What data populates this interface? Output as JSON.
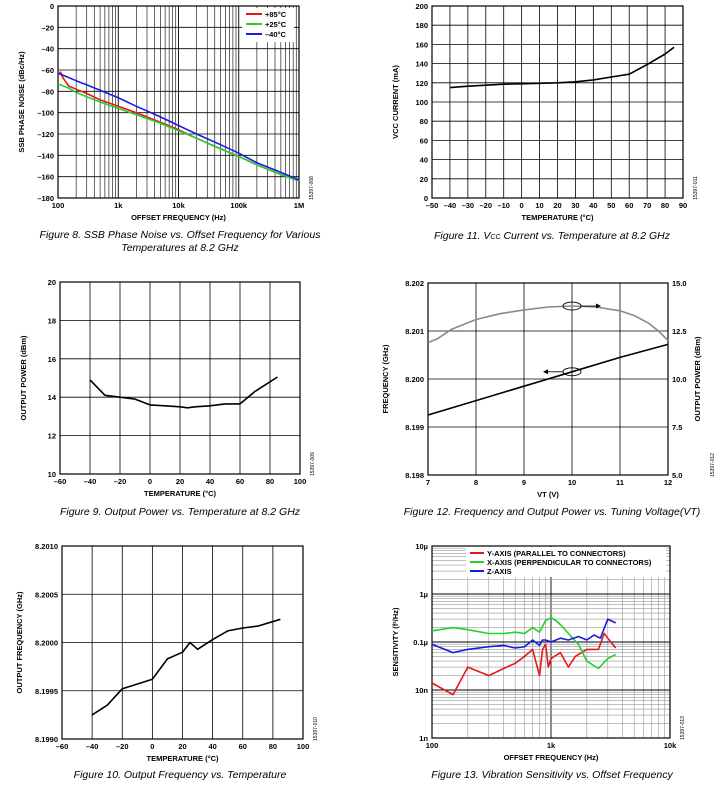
{
  "colors": {
    "red": "#e8171b",
    "green": "#22d12e",
    "blue": "#1c1ce0",
    "gray": "#8a8a8a",
    "black": "#000000"
  },
  "captions": {
    "fig8": "Figure 8. SSB Phase Noise vs. Offset Frequency for Various Temperatures at 8.2 GHz",
    "fig11": "Figure 11. VCC Current vs. Temperature at 8.2 GHz",
    "fig9": "Figure 9. Output Power vs. Temperature at 8.2 GHz",
    "fig12": "Figure 12. Frequency and Output Power vs. Tuning Voltage(VT)",
    "fig10": "Figure 10. Output Frequency vs. Temperature",
    "fig13": "Figure 13. Vibration Sensitivity vs. Offset Frequency"
  },
  "chart_data": [
    {
      "id": "fig8",
      "type": "line",
      "fig_id": "15397-008",
      "xlabel": "OFFSET FREQUENCY (Hz)",
      "ylabel": "SSB PHASE NOISE (dBc/Hz)",
      "xscale": "log",
      "xlim": [
        100,
        1000000
      ],
      "ylim": [
        -180,
        0
      ],
      "xticks": [
        100,
        1000,
        10000,
        100000,
        1000000
      ],
      "xtick_labels": [
        "100",
        "1k",
        "10k",
        "100k",
        "1M"
      ],
      "yticks": [
        0,
        -20,
        -40,
        -60,
        -80,
        -100,
        -120,
        -140,
        -160,
        -180
      ],
      "ytick_labels": [
        "0",
        "–20",
        "–40",
        "–60",
        "–80",
        "–100",
        "–120",
        "–140",
        "–160",
        "–180"
      ],
      "legend_position": "top-right",
      "grid": true,
      "series": [
        {
          "name": "+85°C",
          "color": "red",
          "x": [
            100,
            110,
            120,
            130,
            150,
            200,
            300,
            500,
            1000,
            2000,
            5000,
            10000,
            20000,
            50000,
            100000,
            200000,
            500000,
            1000000
          ],
          "y": [
            -65,
            -62,
            -67,
            -70,
            -75,
            -78,
            -82,
            -88,
            -94,
            -100,
            -109,
            -116,
            -124,
            -134,
            -141,
            -149,
            -158,
            -164
          ]
        },
        {
          "name": "+25°C",
          "color": "green",
          "x": [
            100,
            150,
            200,
            300,
            500,
            1000,
            2000,
            5000,
            10000,
            20000,
            50000,
            100000,
            200000,
            500000,
            1000000
          ],
          "y": [
            -73,
            -77,
            -81,
            -85,
            -90,
            -96,
            -102,
            -110,
            -117,
            -124,
            -134,
            -141,
            -149,
            -158,
            -164
          ]
        },
        {
          "name": "–40°C",
          "color": "blue",
          "x": [
            100,
            150,
            200,
            300,
            500,
            1000,
            2000,
            5000,
            10000,
            20000,
            50000,
            100000,
            200000,
            500000,
            1000000
          ],
          "y": [
            -63,
            -67,
            -70,
            -74,
            -79,
            -86,
            -94,
            -104,
            -112,
            -120,
            -130,
            -138,
            -147,
            -156,
            -163
          ]
        }
      ]
    },
    {
      "id": "fig11",
      "type": "line",
      "fig_id": "15397-011",
      "xlabel": "TEMPERATURE (°C)",
      "ylabel": "VCC CURRENT (mA)",
      "xlim": [
        -50,
        90
      ],
      "ylim": [
        0,
        200
      ],
      "xticks": [
        -50,
        -40,
        -30,
        -20,
        -10,
        0,
        10,
        20,
        30,
        40,
        50,
        60,
        70,
        80,
        90
      ],
      "xtick_labels": [
        "–50",
        "–40",
        "–30",
        "–20",
        "–10",
        "0",
        "10",
        "20",
        "30",
        "40",
        "50",
        "60",
        "70",
        "80",
        "90"
      ],
      "yticks": [
        0,
        20,
        40,
        60,
        80,
        100,
        120,
        140,
        160,
        180,
        200
      ],
      "ytick_labels": [
        "0",
        "20",
        "40",
        "60",
        "80",
        "100",
        "120",
        "140",
        "160",
        "180",
        "200"
      ],
      "grid": true,
      "series": [
        {
          "x": [
            -40,
            -30,
            -20,
            -10,
            0,
            10,
            20,
            30,
            40,
            50,
            60,
            70,
            80,
            85
          ],
          "y": [
            115,
            116.5,
            117.5,
            118.5,
            119,
            119.5,
            120,
            121,
            123,
            126,
            129,
            139,
            150,
            157
          ],
          "color": "black"
        }
      ]
    },
    {
      "id": "fig9",
      "type": "line",
      "fig_id": "15397-009",
      "xlabel": "TEMPERATURE (°C)",
      "ylabel": "OUTPUT POWER (dBm)",
      "xlim": [
        -60,
        100
      ],
      "ylim": [
        10,
        20
      ],
      "xticks": [
        -60,
        -40,
        -20,
        0,
        20,
        40,
        60,
        80,
        100
      ],
      "xtick_labels": [
        "–60",
        "–40",
        "–20",
        "0",
        "20",
        "40",
        "60",
        "80",
        "100"
      ],
      "yticks": [
        10,
        12,
        14,
        16,
        18,
        20
      ],
      "ytick_labels": [
        "10",
        "12",
        "14",
        "16",
        "18",
        "20"
      ],
      "grid": true,
      "series": [
        {
          "x": [
            -40,
            -30,
            -20,
            -10,
            0,
            10,
            20,
            25,
            30,
            40,
            50,
            60,
            70,
            85
          ],
          "y": [
            14.9,
            14.1,
            14.0,
            13.9,
            13.6,
            13.55,
            13.5,
            13.45,
            13.5,
            13.55,
            13.65,
            13.65,
            14.3,
            15.05
          ],
          "color": "black"
        }
      ]
    },
    {
      "id": "fig12",
      "type": "line",
      "fig_id": "15397-012",
      "xlabel": "VT (V)",
      "ylabel": "FREQUENCY (GHz)",
      "y2label": "OUTPUT POWER (dBm)",
      "xlim": [
        7,
        12
      ],
      "ylim": [
        8.198,
        8.202
      ],
      "y2lim": [
        5.0,
        15.0
      ],
      "xticks": [
        7,
        8,
        9,
        10,
        11,
        12
      ],
      "xtick_labels": [
        "7",
        "8",
        "9",
        "10",
        "11",
        "12"
      ],
      "yticks": [
        8.198,
        8.199,
        8.2,
        8.201,
        8.202
      ],
      "ytick_labels": [
        "8.198",
        "8.199",
        "8.200",
        "8.201",
        "8.202"
      ],
      "y2ticks": [
        5,
        7.5,
        10,
        12.5,
        15
      ],
      "y2tick_labels": [
        "5.0",
        "7.5",
        "10.0",
        "12.5",
        "15.0"
      ],
      "grid": true,
      "series": [
        {
          "axis": "left",
          "color": "black",
          "x": [
            7,
            8,
            9,
            10,
            11,
            12
          ],
          "y": [
            8.19925,
            8.19955,
            8.19985,
            8.20015,
            8.20045,
            8.20072
          ]
        },
        {
          "axis": "right",
          "color": "gray",
          "x": [
            7,
            7.2,
            7.5,
            8,
            8.5,
            9,
            9.5,
            10,
            10.5,
            11,
            11.3,
            11.6,
            11.8,
            12
          ],
          "y": [
            11.9,
            12.1,
            12.6,
            13.1,
            13.4,
            13.6,
            13.75,
            13.8,
            13.75,
            13.55,
            13.3,
            12.9,
            12.5,
            12.0
          ]
        }
      ]
    },
    {
      "id": "fig10",
      "type": "line",
      "fig_id": "15397-010",
      "xlabel": "TEMPERATURE (°C)",
      "ylabel": "OUTPUT FREQUENCY (GHz)",
      "xlim": [
        -60,
        100
      ],
      "ylim": [
        8.199,
        8.201
      ],
      "xticks": [
        -60,
        -40,
        -20,
        0,
        20,
        40,
        60,
        80,
        100
      ],
      "xtick_labels": [
        "–60",
        "–40",
        "–20",
        "0",
        "20",
        "40",
        "60",
        "80",
        "100"
      ],
      "yticks": [
        8.199,
        8.1995,
        8.2,
        8.2005,
        8.201
      ],
      "ytick_labels": [
        "8.1990",
        "8.1995",
        "8.2000",
        "8.2005",
        "8.2010"
      ],
      "grid": true,
      "series": [
        {
          "x": [
            -40,
            -30,
            -20,
            0,
            10,
            20,
            25,
            30,
            40,
            50,
            60,
            70,
            85
          ],
          "y": [
            8.19925,
            8.19935,
            8.19952,
            8.19962,
            8.19983,
            8.1999,
            8.2,
            8.19993,
            8.20003,
            8.20012,
            8.20015,
            8.20017,
            8.20024
          ],
          "color": "black"
        }
      ]
    },
    {
      "id": "fig13",
      "type": "line",
      "fig_id": "15397-013",
      "xlabel": "OFFSET FREQUENCY (Hz)",
      "ylabel": "SENSITIVITY (f²/Hz)",
      "xscale": "log",
      "yscale": "log",
      "xlim": [
        100,
        10000
      ],
      "ylim": [
        1e-15,
        1e-11
      ],
      "xticks": [
        100,
        1000,
        10000
      ],
      "xtick_labels": [
        "100",
        "1k",
        "10k"
      ],
      "yticks": [
        1e-15,
        1e-14,
        1e-13,
        1e-12,
        1e-11
      ],
      "ytick_labels": [
        "1n",
        "10n",
        "0.1µ",
        "1µ",
        "10µ"
      ],
      "legend_position": "top",
      "grid": true,
      "series": [
        {
          "name": "Y-AXIS (PARALLEL TO CONNECTORS)",
          "color": "red",
          "x": [
            100,
            150,
            200,
            300,
            400,
            500,
            600,
            700,
            800,
            850,
            900,
            950,
            1000,
            1200,
            1400,
            1600,
            2000,
            2500,
            2800,
            3000,
            3500
          ],
          "y": [
            1.4e-14,
            8e-15,
            3e-14,
            2e-14,
            2.8e-14,
            3.6e-14,
            5e-14,
            7e-14,
            2e-14,
            7e-14,
            9e-14,
            3e-14,
            4.5e-14,
            6e-14,
            3e-14,
            5e-14,
            7e-14,
            7e-14,
            1.5e-13,
            1.2e-13,
            7.5e-14
          ]
        },
        {
          "name": "X-AXIS (PERPENDICULAR TO CONNECTORS)",
          "color": "green",
          "x": [
            100,
            150,
            200,
            300,
            400,
            500,
            600,
            700,
            800,
            900,
            1000,
            1100,
            1200,
            1400,
            1700,
            2000,
            2500,
            3000,
            3500
          ],
          "y": [
            1.7e-13,
            2e-13,
            1.8e-13,
            1.5e-13,
            1.5e-13,
            1.6e-13,
            1.5e-13,
            2e-13,
            1.6e-13,
            2.8e-13,
            3.2e-13,
            2.8e-13,
            2.3e-13,
            1.5e-13,
            9e-14,
            4e-14,
            2.8e-14,
            4.5e-14,
            5.5e-14
          ]
        },
        {
          "name": "Z-AXIS",
          "color": "blue",
          "x": [
            100,
            150,
            200,
            300,
            400,
            500,
            600,
            700,
            800,
            850,
            900,
            1000,
            1200,
            1400,
            1700,
            2000,
            2300,
            2600,
            3000,
            3500
          ],
          "y": [
            9e-14,
            6e-14,
            7e-14,
            8e-14,
            8.5e-14,
            7.5e-14,
            8e-14,
            1.1e-13,
            8.5e-14,
            1.1e-13,
            1.1e-13,
            1e-13,
            1.2e-13,
            1.1e-13,
            1.3e-13,
            1.1e-13,
            1.4e-13,
            1.2e-13,
            3e-13,
            2.5e-13
          ]
        }
      ]
    }
  ]
}
